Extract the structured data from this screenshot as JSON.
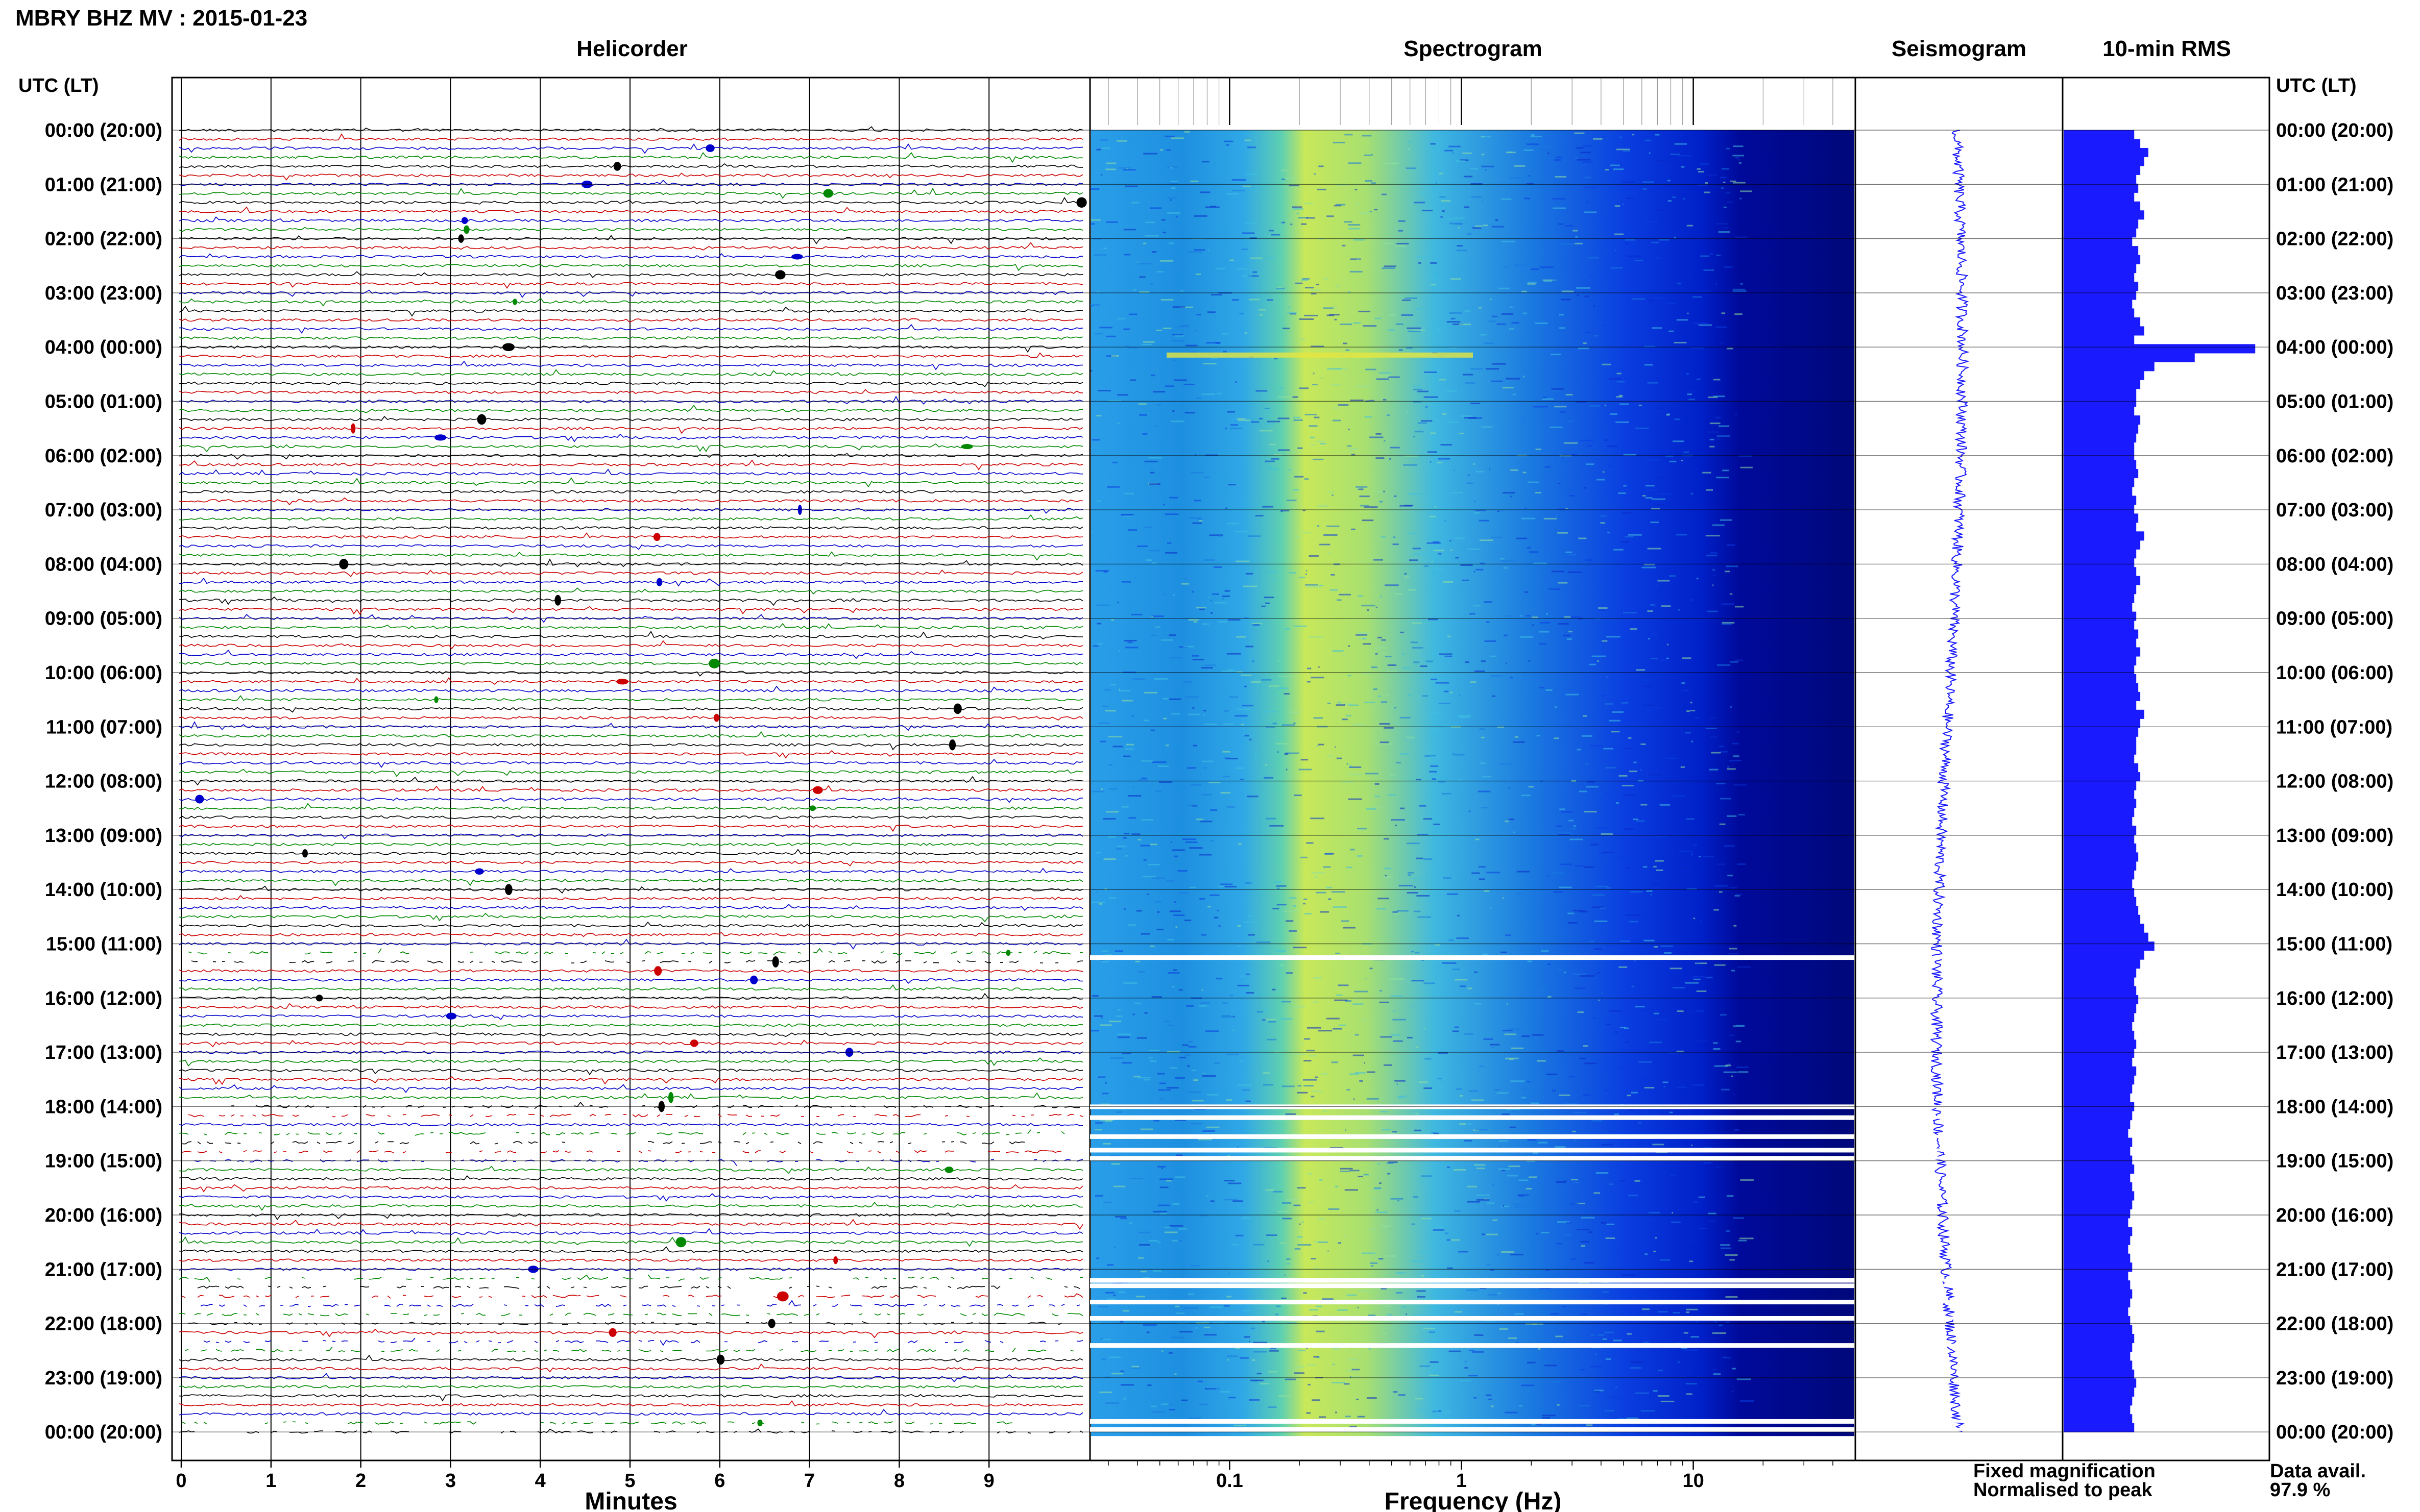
{
  "header": {
    "title": "MBRY BHZ MV : 2015-01-23"
  },
  "panels": {
    "helicorder": "Helicorder",
    "spectrogram": "Spectrogram",
    "seismogram": "Seismogram",
    "rms": "10-min RMS"
  },
  "axis_labels": {
    "time_left": "UTC (LT)",
    "time_right": "UTC (LT)",
    "minutes": "Minutes",
    "frequency": "Frequency (Hz)"
  },
  "legend": {
    "fixed": "Fixed magnification",
    "normalised": "Normalised to peak",
    "fixed_color": "#0000ff",
    "normalised_color": "#ff0000"
  },
  "data_avail": {
    "label": "Data avail.",
    "value": "97.9 %"
  },
  "colors": {
    "trace_cycle": [
      "#000000",
      "#cc0000",
      "#0000cc",
      "#008800"
    ],
    "rms_bar": "#1a1aff",
    "seismogram": "#1a1aff",
    "gap": "#ffffff"
  },
  "chart_data": {
    "type": "heatmap",
    "time_ticks": [
      "00:00 (20:00)",
      "01:00 (21:00)",
      "02:00 (22:00)",
      "03:00 (23:00)",
      "04:00 (00:00)",
      "05:00 (01:00)",
      "06:00 (02:00)",
      "07:00 (03:00)",
      "08:00 (04:00)",
      "09:00 (05:00)",
      "10:00 (06:00)",
      "11:00 (07:00)",
      "12:00 (08:00)",
      "13:00 (09:00)",
      "14:00 (10:00)",
      "15:00 (11:00)",
      "16:00 (12:00)",
      "17:00 (13:00)",
      "18:00 (14:00)",
      "19:00 (15:00)",
      "20:00 (16:00)",
      "21:00 (17:00)",
      "22:00 (18:00)",
      "23:00 (19:00)",
      "00:00 (20:00)"
    ],
    "minutes_ticks": [
      "0",
      "1",
      "2",
      "3",
      "4",
      "5",
      "6",
      "7",
      "8",
      "9"
    ],
    "minutes_range": [
      0,
      10
    ],
    "freq_ticks": [
      "0.1",
      "1",
      "10"
    ],
    "freq_range": [
      0.025,
      50
    ],
    "freq_scale": "log",
    "hours": 24,
    "traces_per_hour": 6,
    "gap_hours": [
      15.25,
      18.0,
      18.2,
      18.55,
      18.8,
      18.95,
      21.2,
      21.3,
      21.6,
      21.9,
      22.4,
      23.8,
      23.95
    ],
    "rms_relative": [
      0.35,
      0.38,
      0.42,
      0.4,
      0.38,
      0.36,
      0.37,
      0.35,
      0.38,
      0.4,
      0.37,
      0.36,
      0.34,
      0.37,
      0.38,
      0.36,
      0.35,
      0.37,
      0.36,
      0.34,
      0.35,
      0.38,
      0.4,
      0.35,
      0.95,
      0.65,
      0.45,
      0.4,
      0.38,
      0.36,
      0.36,
      0.35,
      0.38,
      0.37,
      0.36,
      0.35,
      0.35,
      0.36,
      0.37,
      0.35,
      0.34,
      0.36,
      0.35,
      0.37,
      0.36,
      0.4,
      0.38,
      0.36,
      0.35,
      0.36,
      0.38,
      0.36,
      0.35,
      0.34,
      0.36,
      0.35,
      0.37,
      0.36,
      0.38,
      0.36,
      0.35,
      0.36,
      0.37,
      0.38,
      0.36,
      0.4,
      0.38,
      0.37,
      0.36,
      0.36,
      0.35,
      0.37,
      0.38,
      0.36,
      0.35,
      0.36,
      0.35,
      0.34,
      0.36,
      0.35,
      0.36,
      0.37,
      0.36,
      0.35,
      0.34,
      0.35,
      0.36,
      0.37,
      0.38,
      0.4,
      0.42,
      0.45,
      0.4,
      0.38,
      0.36,
      0.35,
      0.36,
      0.37,
      0.36,
      0.35,
      0.34,
      0.35,
      0.36,
      0.35,
      0.34,
      0.36,
      0.35,
      0.34,
      0.33,
      0.35,
      0.34,
      0.33,
      0.32,
      0.34,
      0.33,
      0.34,
      0.35,
      0.33,
      0.34,
      0.35,
      0.34,
      0.33,
      0.32,
      0.34,
      0.33,
      0.32,
      0.33,
      0.34,
      0.32,
      0.33,
      0.34,
      0.33,
      0.32,
      0.33,
      0.34,
      0.35,
      0.34,
      0.33,
      0.34,
      0.35,
      0.36,
      0.35,
      0.34,
      0.33,
      0.34,
      0.35
    ]
  }
}
